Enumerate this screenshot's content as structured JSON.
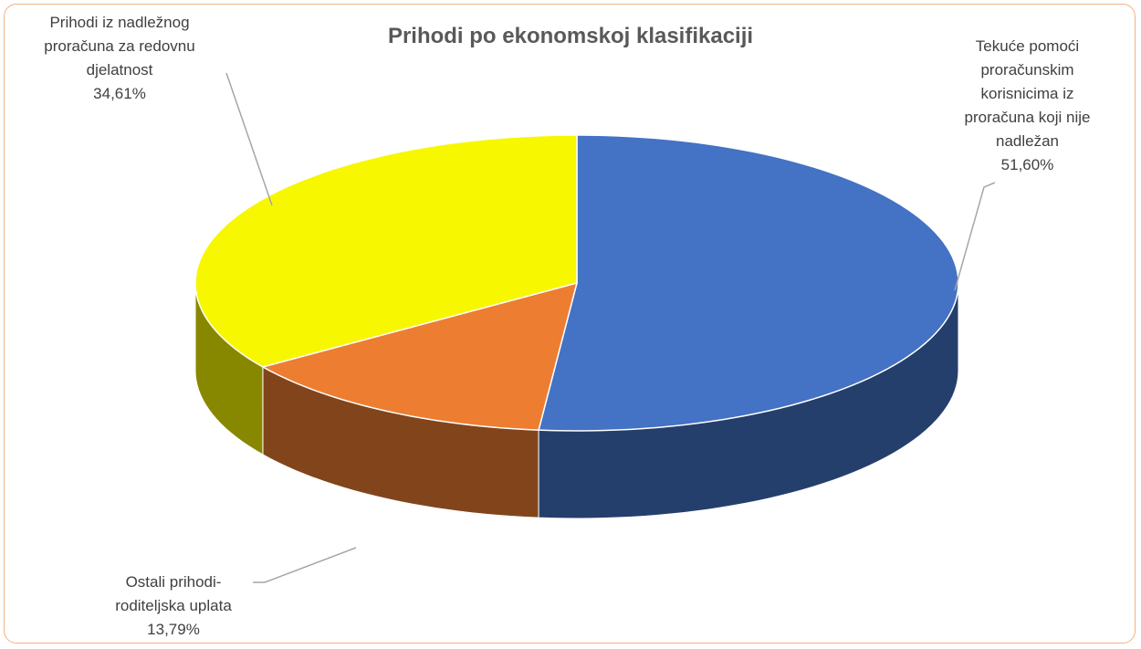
{
  "chart_data": {
    "type": "pie3d",
    "title": "Prihodi po ekonomskoj klasifikaciji",
    "categories": [
      "Tekuće pomoći proračunskim korisnicima iz proračuna koji nije nadležan",
      "Ostali prihodi-roditeljska uplata",
      "Prihodi iz nadležnog proračuna za redovnu djelatnost"
    ],
    "values": [
      51.6,
      13.79,
      34.61
    ],
    "value_labels": [
      "51,60%",
      "13,79%",
      "34,61%"
    ],
    "colors": [
      "#4472c4",
      "#ed7d31",
      "#f7f700"
    ]
  }
}
